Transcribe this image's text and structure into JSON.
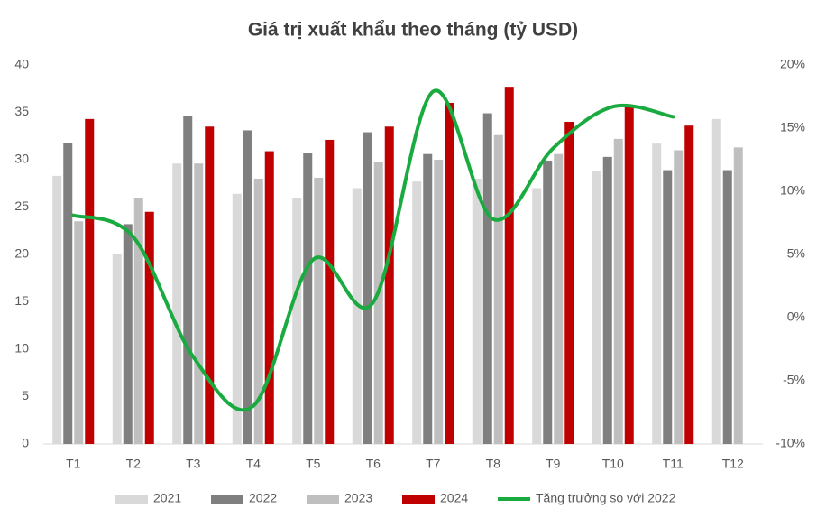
{
  "chart_data": {
    "type": "bar",
    "title": "Giá trị xuất khẩu theo tháng (tỷ USD)",
    "categories": [
      "T1",
      "T2",
      "T3",
      "T4",
      "T5",
      "T6",
      "T7",
      "T8",
      "T9",
      "T10",
      "T11",
      "T12"
    ],
    "series": [
      {
        "name": "2021",
        "color": "#d9d9d9",
        "values": [
          28.3,
          20,
          29.6,
          26.4,
          26,
          27,
          27.7,
          28,
          27,
          28.8,
          31.7,
          34.3
        ]
      },
      {
        "name": "2022",
        "color": "#7f7f7f",
        "values": [
          31.8,
          23.2,
          34.6,
          33.1,
          30.7,
          32.9,
          30.6,
          34.9,
          29.9,
          30.3,
          28.9,
          28.9
        ]
      },
      {
        "name": "2023",
        "color": "#bfbfbf",
        "values": [
          23.5,
          26,
          29.6,
          28,
          28.1,
          29.8,
          30,
          32.6,
          30.6,
          32.2,
          31,
          31.3
        ]
      },
      {
        "name": "2024",
        "color": "#c00000",
        "values": [
          34.3,
          24.5,
          33.5,
          30.9,
          32.1,
          33.5,
          36,
          37.7,
          34,
          35.6,
          33.6,
          null
        ]
      },
      {
        "name": "Tăng trưởng so với 2022",
        "color": "#1aab40",
        "type": "line",
        "axis": "y2",
        "values": [
          8.1,
          6.4,
          -3.1,
          -7,
          4.6,
          1.2,
          17.9,
          7.8,
          13.4,
          16.7,
          15.9,
          null
        ]
      }
    ],
    "ylim": [
      0,
      40
    ],
    "yticks": [
      0,
      5,
      10,
      15,
      20,
      25,
      30,
      35,
      40
    ],
    "y2lim": [
      -10,
      20
    ],
    "y2ticks": [
      {
        "value": -10,
        "label": "-10%"
      },
      {
        "value": -5,
        "label": "-5%"
      },
      {
        "value": 0,
        "label": "0%"
      },
      {
        "value": 5,
        "label": "5%"
      },
      {
        "value": 10,
        "label": "10%"
      },
      {
        "value": 15,
        "label": "15%"
      },
      {
        "value": 20,
        "label": "20%"
      }
    ],
    "legend": "bottom"
  }
}
